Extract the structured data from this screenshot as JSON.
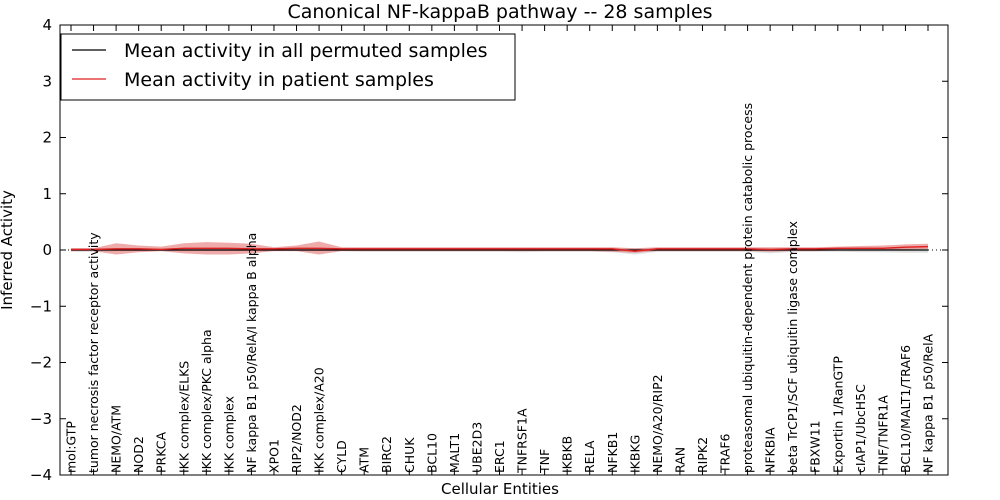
{
  "chart_data": {
    "type": "line",
    "title": "Canonical NF-kappaB pathway -- 28 samples",
    "xlabel": "Cellular Entities",
    "ylabel": "Inferred Activity",
    "ylim": [
      -4,
      4
    ],
    "yticks": [
      -4,
      -3,
      -2,
      -1,
      0,
      1,
      2,
      3,
      4
    ],
    "ytick_labels": [
      "−4",
      "−3",
      "−2",
      "−1",
      "0",
      "1",
      "2",
      "3",
      "4"
    ],
    "legend_position": "top-left",
    "categories": [
      "mol:GTP",
      "tumor necrosis factor receptor activity",
      "NEMO/ATM",
      "NOD2",
      "PRKCA",
      "IKK complex/ELKS",
      "IKK complex/PKC alpha",
      "IKK complex",
      "NF kappa B1 p50/RelA/I kappa B alpha",
      "XPO1",
      "RIP2/NOD2",
      "IKK complex/A20",
      "CYLD",
      "ATM",
      "BIRC2",
      "CHUK",
      "BCL10",
      "MALT1",
      "UBE2D3",
      "ERC1",
      "TNFRSF1A",
      "TNF",
      "IKBKB",
      "RELA",
      "NFKB1",
      "IKBKG",
      "NEMO/A20/RIP2",
      "RAN",
      "RIPK2",
      "TRAF6",
      "proteasomal ubiquitin-dependent protein catabolic process",
      "NFKBIA",
      "beta TrCP1/SCF ubiquitin ligase complex",
      "FBXW11",
      "Exportin 1/RanGTP",
      "cIAP1/UbcH5C",
      "TNF/TNFR1A",
      "BCL10/MALT1/TRAF6",
      "NF kappa B1 p50/RelA"
    ],
    "series": [
      {
        "name": "Mean activity in all permuted samples",
        "color": "#000000",
        "values": [
          0,
          0,
          0,
          0,
          0,
          0,
          0,
          0,
          0,
          0,
          0,
          0,
          0,
          0,
          0,
          0,
          0,
          0,
          0,
          0,
          0,
          0,
          0,
          0,
          0,
          0,
          0,
          0,
          0,
          0,
          0,
          0,
          0,
          0,
          0,
          0,
          0,
          0,
          0
        ],
        "band_lower": [
          -0.03,
          -0.03,
          -0.02,
          -0.02,
          -0.02,
          -0.02,
          -0.02,
          -0.02,
          -0.02,
          -0.02,
          -0.02,
          -0.02,
          -0.02,
          -0.03,
          -0.03,
          -0.03,
          -0.03,
          -0.03,
          -0.03,
          -0.03,
          -0.04,
          -0.03,
          -0.03,
          -0.03,
          -0.04,
          -0.08,
          -0.03,
          -0.03,
          -0.03,
          -0.03,
          -0.03,
          -0.06,
          -0.03,
          -0.03,
          -0.03,
          -0.04,
          -0.04,
          -0.05,
          -0.05
        ],
        "band_upper": [
          0.03,
          0.03,
          0.03,
          0.03,
          0.03,
          0.03,
          0.03,
          0.03,
          0.03,
          0.03,
          0.03,
          0.03,
          0.03,
          0.03,
          0.03,
          0.03,
          0.03,
          0.03,
          0.03,
          0.03,
          0.03,
          0.03,
          0.03,
          0.03,
          0.03,
          0.03,
          0.03,
          0.03,
          0.03,
          0.03,
          0.03,
          0.03,
          0.03,
          0.03,
          0.03,
          0.03,
          0.03,
          0.03,
          0.03
        ]
      },
      {
        "name": "Mean activity in patient samples",
        "color": "#dd2222",
        "values": [
          0.01,
          0.01,
          0.02,
          0.02,
          0.01,
          0.03,
          0.03,
          0.03,
          0.02,
          0.02,
          0.03,
          0.03,
          0.02,
          0.02,
          0.02,
          0.02,
          0.02,
          0.02,
          0.02,
          0.02,
          0.02,
          0.02,
          0.02,
          0.02,
          0.02,
          -0.02,
          0.02,
          0.02,
          0.02,
          0.02,
          0.02,
          0.01,
          0.02,
          0.02,
          0.03,
          0.03,
          0.03,
          0.05,
          0.06
        ],
        "band_lower": [
          -0.02,
          -0.02,
          -0.08,
          -0.04,
          -0.02,
          -0.06,
          -0.08,
          -0.08,
          -0.06,
          -0.02,
          -0.02,
          -0.08,
          -0.02,
          -0.02,
          -0.02,
          -0.02,
          -0.02,
          -0.02,
          -0.02,
          -0.02,
          -0.02,
          -0.02,
          -0.02,
          -0.02,
          -0.03,
          -0.05,
          -0.02,
          -0.02,
          -0.02,
          -0.02,
          -0.02,
          -0.03,
          -0.02,
          -0.02,
          -0.01,
          0.0,
          0.0,
          0.01,
          0.02
        ],
        "band_upper": [
          0.03,
          0.03,
          0.12,
          0.08,
          0.06,
          0.12,
          0.14,
          0.13,
          0.11,
          0.05,
          0.08,
          0.15,
          0.05,
          0.05,
          0.05,
          0.05,
          0.05,
          0.05,
          0.05,
          0.05,
          0.05,
          0.05,
          0.05,
          0.05,
          0.05,
          0.03,
          0.05,
          0.05,
          0.05,
          0.05,
          0.05,
          0.05,
          0.05,
          0.05,
          0.06,
          0.07,
          0.08,
          0.1,
          0.11
        ]
      }
    ],
    "reference_line": {
      "y": 0,
      "style": "dotted"
    }
  }
}
